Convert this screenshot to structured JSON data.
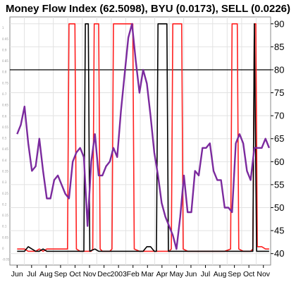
{
  "chart_data": {
    "type": "line",
    "title": "Money Flow Index (62.5098), BYU (0.0173), SELL (0.0226)",
    "x_tick_labels": [
      "Jun",
      "Jul",
      "Aug",
      "Sep",
      "Oct",
      "Nov",
      "Dec",
      "2003",
      "Feb",
      "Mar",
      "Apr",
      "May",
      "Jun",
      "Jul",
      "Aug",
      "Sep",
      "Oct",
      "Nov"
    ],
    "right_axis": {
      "ylim": [
        37.5,
        91.5
      ],
      "ticks": [
        "40",
        "45",
        "50",
        "55",
        "60",
        "65",
        "70",
        "75",
        "80",
        "85",
        "90"
      ]
    },
    "left_axis": {
      "ylim": [
        -0.075,
        1.05
      ],
      "ticks": [
        "-0.05",
        "0",
        "0.05",
        "0.1",
        "0.15",
        "0.2",
        "0.25",
        "0.3",
        "0.35",
        "0.4",
        "0.45",
        "0.5",
        "0.55",
        "0.6",
        "0.65",
        "0.7",
        "0.75",
        "0.8",
        "0.85",
        "0.9",
        "0.95",
        "1"
      ]
    },
    "reference_line": {
      "axis": "right",
      "value": 80
    },
    "grid": true,
    "series": [
      {
        "name": "Money Flow Index",
        "axis": "right",
        "color": "#7b2a9e",
        "points": [
          [
            0.0,
            66
          ],
          [
            0.5,
            68
          ],
          [
            1.0,
            72
          ],
          [
            1.5,
            64
          ],
          [
            2.0,
            58
          ],
          [
            2.5,
            59
          ],
          [
            3.0,
            65
          ],
          [
            3.5,
            58
          ],
          [
            4.0,
            52
          ],
          [
            4.5,
            52
          ],
          [
            5.0,
            56
          ],
          [
            5.5,
            57
          ],
          [
            6.0,
            55
          ],
          [
            6.5,
            53
          ],
          [
            7.0,
            52
          ],
          [
            7.5,
            60
          ],
          [
            8.0,
            62
          ],
          [
            8.5,
            63
          ],
          [
            9.0,
            61
          ],
          [
            9.5,
            46
          ],
          [
            10.0,
            60
          ],
          [
            10.5,
            66
          ],
          [
            11.0,
            57
          ],
          [
            11.5,
            57
          ],
          [
            12.0,
            59
          ],
          [
            12.5,
            60
          ],
          [
            13.0,
            63
          ],
          [
            13.5,
            61
          ],
          [
            14.0,
            71
          ],
          [
            14.5,
            79
          ],
          [
            15.0,
            87
          ],
          [
            15.5,
            90
          ],
          [
            16.0,
            82
          ],
          [
            16.5,
            75
          ],
          [
            17.0,
            80
          ],
          [
            17.5,
            77
          ],
          [
            18.0,
            70
          ],
          [
            18.5,
            62
          ],
          [
            19.0,
            57
          ],
          [
            19.5,
            51
          ],
          [
            20.0,
            48
          ],
          [
            20.5,
            46
          ],
          [
            21.0,
            44
          ],
          [
            21.5,
            41
          ],
          [
            22.0,
            48
          ],
          [
            22.5,
            57
          ],
          [
            23.0,
            49
          ],
          [
            23.5,
            49
          ],
          [
            24.0,
            58
          ],
          [
            24.5,
            57
          ],
          [
            25.0,
            63
          ],
          [
            25.5,
            63
          ],
          [
            26.0,
            64
          ],
          [
            26.5,
            58
          ],
          [
            27.0,
            56
          ],
          [
            27.5,
            56
          ],
          [
            28.0,
            50
          ],
          [
            28.5,
            50
          ],
          [
            29.0,
            49
          ],
          [
            29.5,
            64
          ],
          [
            30.0,
            66
          ],
          [
            30.5,
            64
          ],
          [
            31.0,
            58
          ],
          [
            31.5,
            56
          ],
          [
            32.0,
            63
          ],
          [
            32.5,
            63
          ],
          [
            33.0,
            63
          ],
          [
            33.5,
            65
          ],
          [
            34.0,
            63
          ]
        ]
      },
      {
        "name": "BYU",
        "axis": "right",
        "color": "#000000",
        "points": [
          [
            0.0,
            40.5
          ],
          [
            1.0,
            40.5
          ],
          [
            1.5,
            41.5
          ],
          [
            2.0,
            41.0
          ],
          [
            2.5,
            40.5
          ],
          [
            3.0,
            40.5
          ],
          [
            3.5,
            41.0
          ],
          [
            4.0,
            40.5
          ],
          [
            5.0,
            40.5
          ],
          [
            6.0,
            40.5
          ],
          [
            7.0,
            40.5
          ],
          [
            8.0,
            40.5
          ],
          [
            8.5,
            40.5
          ],
          [
            9.0,
            40.5
          ],
          [
            9.2,
            90
          ],
          [
            9.6,
            90
          ],
          [
            9.8,
            40.5
          ],
          [
            10.5,
            41.0
          ],
          [
            11.0,
            40.5
          ],
          [
            12.0,
            40.5
          ],
          [
            13.0,
            40.5
          ],
          [
            14.0,
            40.5
          ],
          [
            15.0,
            40.5
          ],
          [
            16.0,
            40.5
          ],
          [
            17.0,
            40.5
          ],
          [
            17.5,
            41.5
          ],
          [
            18.0,
            41.5
          ],
          [
            18.5,
            40.5
          ],
          [
            18.8,
            40.5
          ],
          [
            19.0,
            90
          ],
          [
            20.2,
            90
          ],
          [
            20.4,
            40.5
          ],
          [
            21.0,
            40.5
          ],
          [
            22.0,
            40.5
          ],
          [
            23.0,
            40.5
          ],
          [
            24.0,
            40.5
          ],
          [
            25.0,
            40.5
          ],
          [
            26.0,
            40.5
          ],
          [
            27.0,
            40.5
          ],
          [
            28.0,
            40.5
          ],
          [
            29.0,
            40.5
          ],
          [
            30.0,
            40.5
          ],
          [
            30.5,
            40.5
          ],
          [
            31.0,
            40.5
          ],
          [
            31.8,
            40.5
          ],
          [
            32.0,
            90
          ],
          [
            32.3,
            40.5
          ],
          [
            33.0,
            40.5
          ],
          [
            34.0,
            40.5
          ]
        ]
      },
      {
        "name": "SELL",
        "axis": "right",
        "color": "#ff2020",
        "points": [
          [
            0.0,
            41.0
          ],
          [
            1.0,
            41.0
          ],
          [
            1.5,
            40.5
          ],
          [
            2.0,
            40.5
          ],
          [
            2.5,
            40.5
          ],
          [
            3.0,
            41.0
          ],
          [
            3.5,
            40.5
          ],
          [
            4.0,
            41.0
          ],
          [
            5.0,
            41.0
          ],
          [
            6.0,
            41.0
          ],
          [
            6.8,
            41.0
          ],
          [
            7.0,
            90
          ],
          [
            7.8,
            90
          ],
          [
            8.0,
            41.0
          ],
          [
            8.5,
            40.5
          ],
          [
            9.0,
            40.5
          ],
          [
            9.5,
            40.5
          ],
          [
            10.0,
            40.5
          ],
          [
            10.2,
            41.0
          ],
          [
            10.4,
            90
          ],
          [
            11.0,
            90
          ],
          [
            11.2,
            41.0
          ],
          [
            11.5,
            40.5
          ],
          [
            12.0,
            40.5
          ],
          [
            12.5,
            40.5
          ],
          [
            12.8,
            41.0
          ],
          [
            13.0,
            90
          ],
          [
            15.6,
            90
          ],
          [
            15.8,
            41.0
          ],
          [
            16.5,
            40.5
          ],
          [
            17.0,
            40.5
          ],
          [
            18.0,
            40.5
          ],
          [
            19.0,
            40.5
          ],
          [
            19.5,
            40.5
          ],
          [
            20.0,
            40.5
          ],
          [
            20.5,
            40.5
          ],
          [
            20.8,
            41.0
          ],
          [
            21.0,
            90
          ],
          [
            22.2,
            90
          ],
          [
            22.4,
            41.0
          ],
          [
            23.0,
            40.5
          ],
          [
            24.0,
            40.5
          ],
          [
            25.0,
            40.5
          ],
          [
            26.0,
            40.5
          ],
          [
            27.0,
            40.5
          ],
          [
            28.0,
            40.5
          ],
          [
            28.8,
            41.0
          ],
          [
            29.0,
            90
          ],
          [
            29.7,
            90
          ],
          [
            29.9,
            41.0
          ],
          [
            30.5,
            40.5
          ],
          [
            31.0,
            40.5
          ],
          [
            31.5,
            40.5
          ],
          [
            31.8,
            41.0
          ],
          [
            32.0,
            90
          ],
          [
            32.2,
            90
          ],
          [
            32.4,
            41.5
          ],
          [
            33.0,
            41.5
          ],
          [
            33.5,
            41.0
          ],
          [
            34.0,
            41.0
          ]
        ]
      }
    ]
  }
}
